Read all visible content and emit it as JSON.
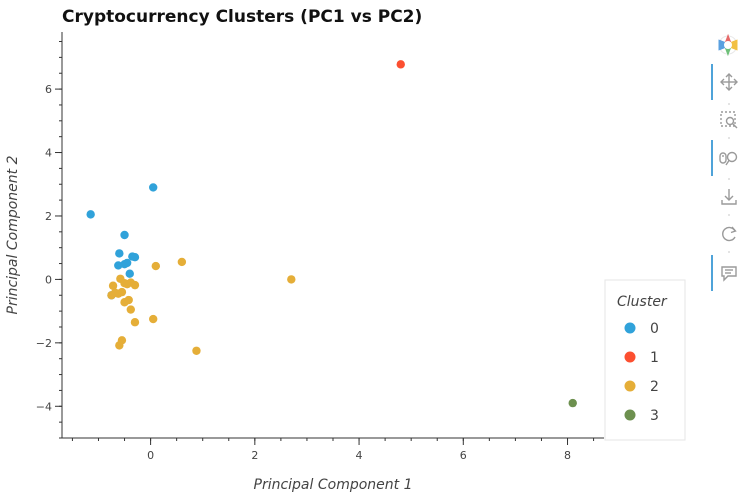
{
  "chart_data": {
    "type": "scatter",
    "title": "Cryptocurrency Clusters (PC1 vs PC2)",
    "xlabel": "Principal Component 1",
    "ylabel": "Principal Component 2",
    "xlim": [
      -1.7,
      8.7
    ],
    "ylim": [
      -5,
      7.8
    ],
    "xticks": [
      0,
      2,
      4,
      6,
      8
    ],
    "yticks": [
      -4,
      -2,
      0,
      2,
      4,
      6
    ],
    "grid": false,
    "legend": {
      "title": "Cluster",
      "placement": "right"
    },
    "series": [
      {
        "name": "0",
        "color": "#30a2da",
        "x": [
          -1.15,
          0.05,
          -0.5,
          -0.6,
          -0.35,
          -0.3,
          -0.45,
          -0.5,
          -0.62,
          -0.4,
          -0.75
        ],
        "y": [
          2.05,
          2.9,
          1.4,
          0.82,
          0.72,
          0.7,
          0.52,
          0.48,
          0.44,
          0.18,
          -0.5
        ]
      },
      {
        "name": "1",
        "color": "#fc4f30",
        "x": [
          4.8
        ],
        "y": [
          6.78
        ]
      },
      {
        "name": "2",
        "color": "#e5ae38",
        "x": [
          0.6,
          2.7,
          0.1,
          -0.58,
          -0.5,
          -0.45,
          -0.38,
          -0.3,
          -0.72,
          -0.55,
          -0.62,
          -0.68,
          -0.75,
          -0.5,
          -0.42,
          -0.38,
          -0.3,
          0.05,
          -0.55,
          -0.6,
          0.88
        ],
        "y": [
          0.55,
          0.0,
          0.42,
          0.02,
          -0.12,
          -0.15,
          -0.1,
          -0.18,
          -0.2,
          -0.4,
          -0.45,
          -0.42,
          -0.5,
          -0.72,
          -0.65,
          -0.95,
          -1.35,
          -1.25,
          -1.92,
          -2.08,
          -2.25
        ]
      },
      {
        "name": "3",
        "color": "#6d904f",
        "x": [
          8.1
        ],
        "y": [
          -3.9
        ]
      }
    ]
  },
  "toolbar": {
    "logo_icon": "bokeh-logo-icon",
    "tools": [
      "pan-icon",
      "box-zoom-icon",
      "wheel-zoom-icon",
      "save-icon",
      "reset-icon",
      "hover-icon"
    ]
  }
}
